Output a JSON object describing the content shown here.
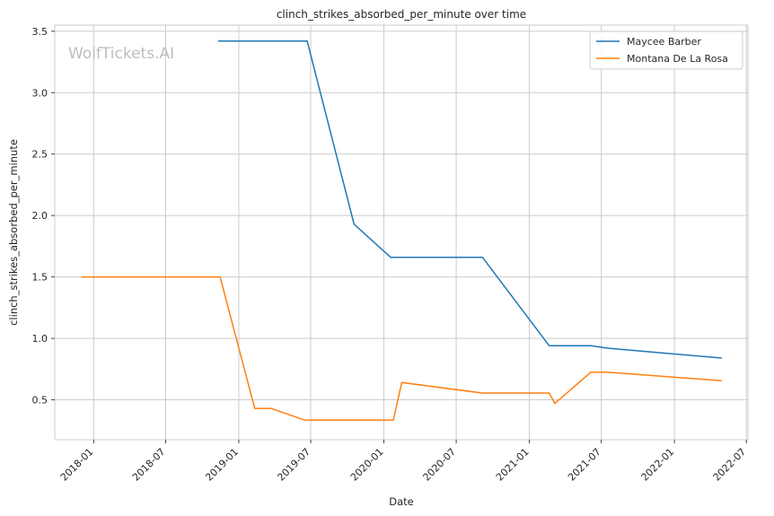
{
  "chart_data": {
    "type": "line",
    "title": "clinch_strikes_absorbed_per_minute over time",
    "xlabel": "Date",
    "ylabel": "clinch_strikes_absorbed_per_minute",
    "watermark": "WolfTickets.AI",
    "x_range": [
      "2017-09-25",
      "2022-07-05"
    ],
    "ylim": [
      0.175,
      3.55
    ],
    "x_ticks": [
      "2018-01",
      "2018-07",
      "2019-01",
      "2019-07",
      "2020-01",
      "2020-07",
      "2021-01",
      "2021-07",
      "2022-01",
      "2022-07"
    ],
    "y_ticks": [
      0.5,
      1.0,
      1.5,
      2.0,
      2.5,
      3.0,
      3.5
    ],
    "y_tick_labels": [
      "0.5",
      "1.0",
      "1.5",
      "2.0",
      "2.5",
      "3.0",
      "3.5"
    ],
    "grid": true,
    "legend_position": "top-right",
    "series": [
      {
        "name": "Maycee Barber",
        "color": "#1f77b4",
        "points": [
          {
            "x": "2018-11-10",
            "y": 3.42
          },
          {
            "x": "2019-06-22",
            "y": 3.42
          },
          {
            "x": "2019-10-18",
            "y": 1.93
          },
          {
            "x": "2020-01-18",
            "y": 1.66
          },
          {
            "x": "2020-09-05",
            "y": 1.66
          },
          {
            "x": "2021-02-20",
            "y": 0.94
          },
          {
            "x": "2021-06-05",
            "y": 0.94
          },
          {
            "x": "2021-07-17",
            "y": 0.92
          },
          {
            "x": "2022-04-30",
            "y": 0.84
          }
        ]
      },
      {
        "name": "Montana De La Rosa",
        "color": "#ff7f0e",
        "points": [
          {
            "x": "2017-12-01",
            "y": 1.5
          },
          {
            "x": "2018-11-15",
            "y": 1.5
          },
          {
            "x": "2019-02-10",
            "y": 0.43
          },
          {
            "x": "2019-03-23",
            "y": 0.43
          },
          {
            "x": "2019-06-15",
            "y": 0.335
          },
          {
            "x": "2020-01-25",
            "y": 0.335
          },
          {
            "x": "2020-02-15",
            "y": 0.64
          },
          {
            "x": "2020-09-05",
            "y": 0.555
          },
          {
            "x": "2021-02-20",
            "y": 0.555
          },
          {
            "x": "2021-03-06",
            "y": 0.47
          },
          {
            "x": "2021-06-05",
            "y": 0.725
          },
          {
            "x": "2021-07-17",
            "y": 0.725
          },
          {
            "x": "2022-04-30",
            "y": 0.655
          }
        ]
      }
    ]
  }
}
